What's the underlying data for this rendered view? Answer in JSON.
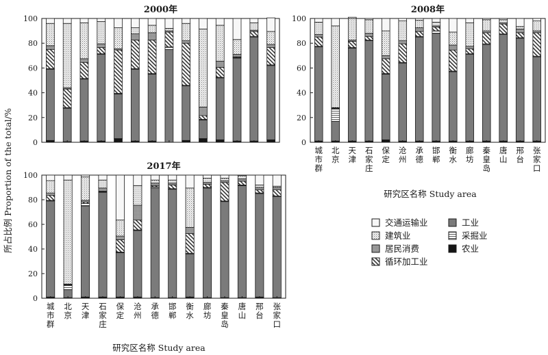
{
  "figure": {
    "ylabel": "所占比例 Proportion of the total/%",
    "xlabel": "研究区名称 Study area",
    "yticks": [
      0,
      20,
      40,
      60,
      80,
      100
    ]
  },
  "legend": {
    "items": [
      {
        "key": "transport",
        "label": "交通运输业"
      },
      {
        "key": "industry",
        "label": "工业"
      },
      {
        "key": "construction",
        "label": "建筑业"
      },
      {
        "key": "mining",
        "label": "采掘业"
      },
      {
        "key": "consumption",
        "label": "居民消费"
      },
      {
        "key": "agriculture",
        "label": "农业"
      },
      {
        "key": "recycling",
        "label": "循环加工业"
      }
    ]
  },
  "colors": {
    "industry": "#7b7b7b",
    "agriculture": "#151515",
    "mining": "#ffffff",
    "recycling": "#ffffff",
    "consumption": "#9c9c9c",
    "construction": "#ececec",
    "transport": "#f7f7f7",
    "outline": "#1a1a1a"
  },
  "chart_data": [
    {
      "type": "bar",
      "stacked": true,
      "title": "2000年",
      "categories": [
        "城市群",
        "北京",
        "天津",
        "石家庄",
        "保定",
        "沧州",
        "承德",
        "邯郸",
        "衡水",
        "廊坊",
        "秦皇岛",
        "唐山",
        "邢台",
        "张家口"
      ],
      "ylim": [
        0,
        100
      ],
      "series": [
        {
          "key": "agriculture",
          "values": [
            1.5,
            0.5,
            1,
            1,
            3,
            1,
            1,
            0,
            1.5,
            3,
            2,
            1,
            1,
            2
          ]
        },
        {
          "key": "industry",
          "values": [
            57.5,
            27,
            50,
            70,
            36,
            58,
            54,
            75,
            44,
            15,
            50,
            67,
            84,
            60
          ]
        },
        {
          "key": "mining",
          "values": [
            0.5,
            0.5,
            0.5,
            0.5,
            0.5,
            0.5,
            0.5,
            2,
            0.5,
            0.5,
            0.5,
            0.5,
            0.5,
            0.5
          ]
        },
        {
          "key": "recycling",
          "values": [
            15.5,
            15,
            13,
            5,
            35,
            23,
            27,
            12,
            34,
            3,
            8,
            0.5,
            4,
            14
          ]
        },
        {
          "key": "consumption",
          "values": [
            3,
            1,
            3,
            3,
            1,
            5,
            6,
            1,
            2,
            7,
            5,
            2,
            1,
            2.5
          ]
        },
        {
          "key": "construction",
          "values": [
            18,
            52,
            29,
            18,
            17,
            5,
            6,
            2,
            14,
            63,
            29,
            12,
            6,
            10.5
          ]
        },
        {
          "key": "transport",
          "values": [
            4,
            4,
            3.5,
            2.5,
            7.5,
            7.5,
            5.5,
            8,
            4,
            8.5,
            5.5,
            17,
            3.5,
            11
          ]
        }
      ]
    },
    {
      "type": "bar",
      "stacked": true,
      "title": "2008年",
      "categories": [
        "城市群",
        "北京",
        "天津",
        "石家庄",
        "保定",
        "沧州",
        "承德",
        "邯郸",
        "衡水",
        "廊坊",
        "秦皇岛",
        "唐山",
        "邢台",
        "张家口"
      ],
      "ylim": [
        0,
        100
      ],
      "series": [
        {
          "key": "agriculture",
          "values": [
            1,
            1,
            1,
            1,
            2,
            1,
            1,
            1,
            1,
            1,
            1,
            1,
            1,
            1
          ]
        },
        {
          "key": "industry",
          "values": [
            76,
            16,
            75,
            81,
            53,
            63,
            84,
            87,
            56,
            70,
            78,
            86,
            83,
            68
          ]
        },
        {
          "key": "mining",
          "values": [
            0.5,
            10,
            0.5,
            0.5,
            0.5,
            0.5,
            0.5,
            2,
            0.5,
            0.5,
            0.5,
            0.5,
            0.5,
            0.5
          ]
        },
        {
          "key": "recycling",
          "values": [
            7.5,
            0.5,
            5,
            3,
            12,
            15,
            4,
            3,
            17,
            4,
            9,
            8,
            4,
            19
          ]
        },
        {
          "key": "consumption",
          "values": [
            2,
            0.5,
            1,
            2.5,
            2.5,
            2.5,
            3,
            1,
            4,
            2,
            1.5,
            1,
            3,
            1.5
          ]
        },
        {
          "key": "construction",
          "values": [
            10,
            66,
            17.5,
            11,
            20,
            16,
            6,
            3,
            10.5,
            19,
            9,
            2.5,
            2,
            8
          ]
        },
        {
          "key": "transport",
          "values": [
            3,
            6,
            1,
            1,
            10,
            2,
            1.5,
            3,
            11,
            3.5,
            1,
            1,
            6.5,
            2
          ]
        }
      ]
    },
    {
      "type": "bar",
      "stacked": true,
      "title": "2017年",
      "categories": [
        "城市群",
        "北京",
        "天津",
        "石家庄",
        "保定",
        "沧州",
        "承德",
        "邯郸",
        "衡水",
        "廊坊",
        "秦皇岛",
        "唐山",
        "邢台",
        "张家口"
      ],
      "ylim": [
        0,
        100
      ],
      "series": [
        {
          "key": "agriculture",
          "values": [
            1,
            0.5,
            1,
            1,
            1,
            1,
            0.5,
            0.5,
            1,
            0.5,
            0.5,
            0.5,
            1,
            0.5
          ]
        },
        {
          "key": "industry",
          "values": [
            78,
            6.5,
            74,
            85,
            36,
            54,
            89,
            88,
            35,
            89,
            78,
            91,
            84,
            82
          ]
        },
        {
          "key": "mining",
          "values": [
            0.5,
            3.5,
            2,
            0.5,
            0.5,
            0.5,
            1,
            0.5,
            0.5,
            0.5,
            0.5,
            0.5,
            0.5,
            0.5
          ]
        },
        {
          "key": "recycling",
          "values": [
            4,
            0.5,
            1,
            0.5,
            10,
            8,
            1,
            3,
            16,
            2.5,
            15,
            3,
            2.5,
            5
          ]
        },
        {
          "key": "consumption",
          "values": [
            2,
            0.5,
            1.5,
            2.5,
            3,
            12,
            2,
            1.5,
            5,
            1.5,
            1.5,
            2,
            2,
            2
          ]
        },
        {
          "key": "construction",
          "values": [
            10,
            84.5,
            19,
            6.5,
            13,
            16,
            2.5,
            2.5,
            32,
            3.5,
            2,
            2.5,
            2,
            1
          ]
        },
        {
          "key": "transport",
          "values": [
            4.5,
            4,
            1.5,
            4,
            36.5,
            8.5,
            4,
            4,
            10.5,
            2.5,
            2.5,
            0.5,
            8,
            9
          ]
        }
      ]
    }
  ]
}
